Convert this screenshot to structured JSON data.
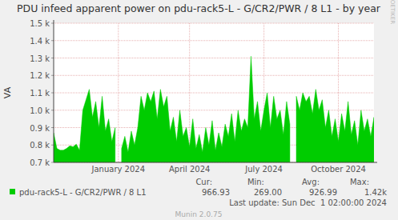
{
  "chart_data": {
    "type": "area",
    "title": "PDU infeed apparent power on pdu-rack5-L - G/CR2/PWR / 8 L1 - by year",
    "y_label": "VA",
    "watermark": "RRDTOOL / TOBI OETIKER",
    "categories": [
      null,
      null,
      null,
      null,
      null,
      null,
      null,
      null,
      null,
      null,
      null,
      null,
      null,
      null,
      null,
      null,
      null,
      null,
      null,
      null,
      "January 2024",
      null,
      null,
      null,
      null,
      null,
      null,
      null,
      null,
      null,
      null,
      null,
      null,
      null,
      null,
      null,
      null,
      null,
      null,
      null,
      null,
      null,
      "April 2024",
      null,
      null,
      null,
      null,
      null,
      null,
      null,
      null,
      null,
      null,
      null,
      null,
      null,
      null,
      null,
      null,
      null,
      null,
      null,
      null,
      null,
      null,
      "July 2024",
      null,
      null,
      null,
      null,
      null,
      null,
      null,
      null,
      null,
      null,
      null,
      null,
      null,
      null,
      null,
      null,
      null,
      null,
      null,
      null,
      null,
      null,
      "October 2024",
      null,
      null,
      null,
      null,
      null,
      null,
      null,
      null,
      null,
      null,
      null
    ],
    "series": [
      {
        "name": "pdu-rack5-L - G/CR2/PWR / 8 L1",
        "color": "#00cc00",
        "values": [
          870,
          780,
          770,
          770,
          780,
          795,
          790,
          805,
          770,
          1000,
          1060,
          1120,
          960,
          1050,
          900,
          1080,
          880,
          950,
          820,
          900,
          null,
          780,
          850,
          760,
          880,
          800,
          900,
          1080,
          1000,
          1100,
          1050,
          1110,
          950,
          1120,
          1020,
          1080,
          880,
          960,
          820,
          1000,
          850,
          900,
          790,
          950,
          780,
          860,
          760,
          900,
          800,
          940,
          770,
          870,
          790,
          920,
          850,
          980,
          820,
          1000,
          880,
          950,
          900,
          1310,
          950,
          1050,
          880,
          1000,
          1100,
          900,
          1080,
          950,
          1000,
          860,
          1050,
          920,
          null,
          1080,
          1000,
          1100,
          1050,
          1080,
          980,
          1120,
          1000,
          1060,
          900,
          1000,
          850,
          950,
          820,
          980,
          880,
          1050,
          860,
          940,
          800,
          1000,
          880,
          950,
          850,
          960
        ]
      }
    ],
    "ylim": [
      700,
      1500
    ],
    "yticks": [
      {
        "value": 700,
        "label": "0.7 k"
      },
      {
        "value": 800,
        "label": "0.8 k"
      },
      {
        "value": 900,
        "label": "0.9 k"
      },
      {
        "value": 1000,
        "label": "1.0 k"
      },
      {
        "value": 1100,
        "label": "1.1 k"
      },
      {
        "value": 1200,
        "label": "1.2 k"
      },
      {
        "value": 1300,
        "label": "1.3 k"
      },
      {
        "value": 1400,
        "label": "1.4 k"
      },
      {
        "value": 1500,
        "label": "1.5 k"
      }
    ],
    "grid": true,
    "summary": [
      {
        "label": "Cur:",
        "value": "966.93"
      },
      {
        "label": "Min:",
        "value": "269.00"
      },
      {
        "label": "Avg:",
        "value": "926.99"
      },
      {
        "label": "Max:",
        "value": "1.42k"
      }
    ],
    "footer": "Last update: Sun Dec  1 02:00:00 2024",
    "credit": "Munin 2.0.75"
  }
}
